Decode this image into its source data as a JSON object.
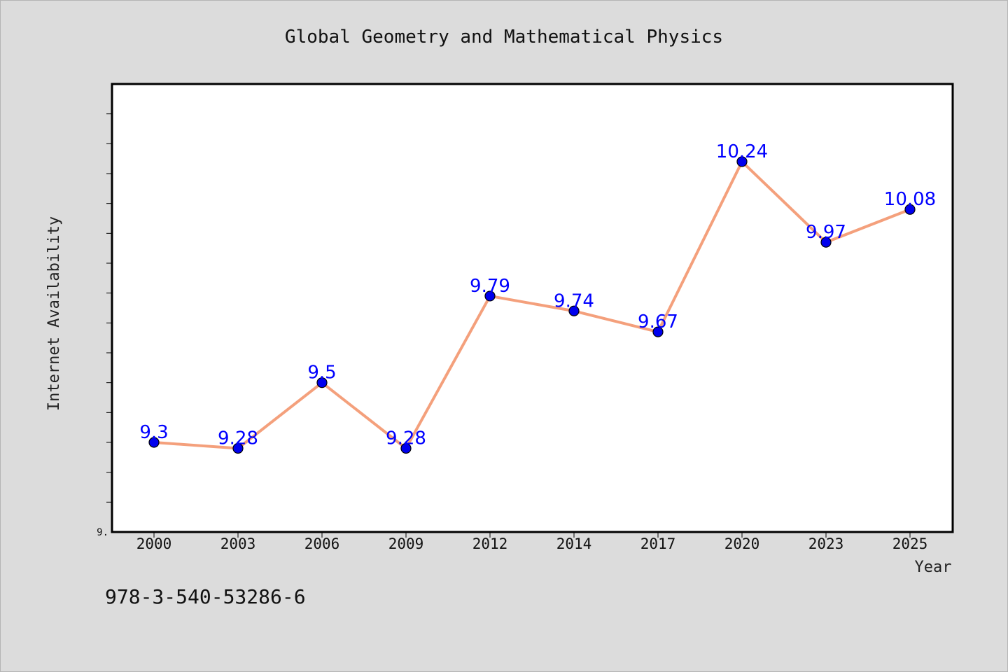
{
  "chart_data": {
    "type": "line",
    "title": "Global Geometry and Mathematical Physics",
    "xlabel": "Year",
    "ylabel": "Internet Availability",
    "categories": [
      "2000",
      "2003",
      "2006",
      "2009",
      "2012",
      "2014",
      "2017",
      "2020",
      "2023",
      "2025"
    ],
    "series": [
      {
        "values": [
          9.3,
          9.28,
          9.5,
          9.28,
          9.79,
          9.74,
          9.67,
          10.24,
          9.97,
          10.08
        ],
        "data_labels": [
          "9.3",
          "9.28",
          "9.5",
          "9.28",
          "9.79",
          "9.74",
          "9.67",
          "10.24",
          "9.97",
          "10.08"
        ],
        "line_color": "#f4a07c",
        "marker_color": "#0000ee"
      }
    ],
    "ylim": [
      9.0,
      10.5
    ],
    "ytick_step": 0.1,
    "ytick_labels": [
      "9."
    ],
    "data_label_color": "#0000ff",
    "grid": false,
    "legend": "none"
  },
  "footer": {
    "isbn": "978-3-540-53286-6"
  },
  "colors": {
    "background": "#dcdcdc",
    "plot_background": "#ffffff",
    "axis": "#000000"
  }
}
